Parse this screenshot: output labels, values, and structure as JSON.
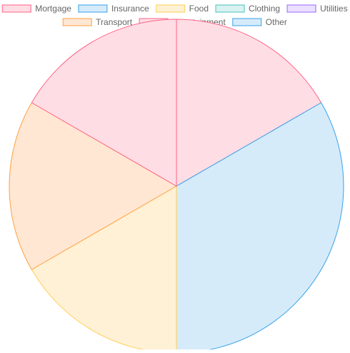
{
  "chart_data": {
    "type": "pie",
    "legend_position": "top",
    "categories": [
      "Mortgage",
      "Insurance",
      "Food",
      "Clothing",
      "Utilities",
      "Transport",
      "Entertainment",
      "Other"
    ],
    "values": [
      1,
      2,
      1,
      0,
      0,
      1,
      1,
      0
    ],
    "colors": {
      "border": [
        "#ff6384",
        "#36a2eb",
        "#ffce56",
        "#4bc0c0",
        "#9966ff",
        "#ff9f40",
        "#ff6384",
        "#36a2eb"
      ],
      "fill": [
        "#ffdde5",
        "#d6ebfa",
        "#fff1d6",
        "#d9f2f2",
        "#ebe0ff",
        "#ffe7d4",
        "#ffdde5",
        "#d6ebfa"
      ]
    }
  }
}
